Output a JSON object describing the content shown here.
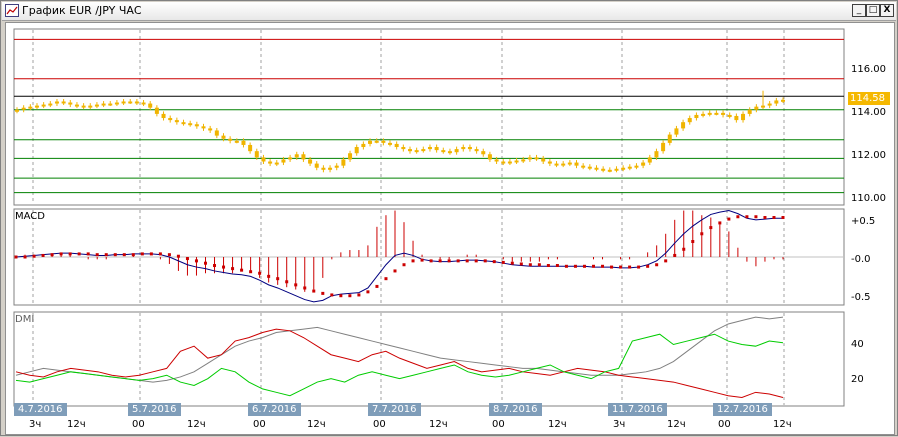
{
  "window": {
    "title": "График EUR /JPY  ЧАС",
    "buttons": [
      "_",
      "□",
      "X"
    ]
  },
  "price_panel": {
    "y_ticks": [
      "116.00",
      "114.00",
      "112.00",
      "110.00"
    ],
    "current_price": "114.58",
    "levels_red": [
      117.5,
      115.6
    ],
    "level_black": 114.75,
    "levels_green": [
      114.1,
      112.65,
      111.75,
      110.8,
      110.1
    ]
  },
  "macd_panel": {
    "label": "MACD",
    "y_ticks": [
      "+0.5",
      "-0.0",
      "-0.5"
    ]
  },
  "dmi_panel": {
    "label": "DMI",
    "y_ticks": [
      "40",
      "20"
    ]
  },
  "x_axis": {
    "dates": [
      "4.7.2016",
      "5.7.2016",
      "6.7.2016",
      "7.7.2016",
      "8.7.2016",
      "11.7.2016",
      "12.7.2016"
    ],
    "hours": [
      "3ч",
      "12ч",
      "00",
      "12ч",
      "00",
      "12ч",
      "00",
      "12ч",
      "00",
      "12ч",
      "3ч",
      "12ч",
      "00",
      "12ч"
    ]
  },
  "colors": {
    "candle": "#f0b400",
    "macd_line": "#000080",
    "signal": "#cc0000",
    "di_plus": "#00cc00",
    "di_minus": "#cc0000",
    "adx": "#808080",
    "date_tag": "#7f9db9"
  },
  "chart_data": [
    {
      "type": "candlestick",
      "title": "EUR/JPY",
      "ylim": [
        109.5,
        118
      ],
      "close": [
        114.1,
        114.2,
        114.25,
        114.3,
        114.35,
        114.4,
        114.5,
        114.45,
        114.35,
        114.3,
        114.25,
        114.3,
        114.35,
        114.4,
        114.4,
        114.45,
        114.5,
        114.5,
        114.45,
        114.4,
        114.2,
        113.9,
        113.7,
        113.6,
        113.5,
        113.45,
        113.4,
        113.3,
        113.2,
        113.1,
        112.85,
        112.7,
        112.6,
        112.6,
        112.4,
        112.1,
        111.8,
        111.6,
        111.5,
        111.55,
        111.7,
        111.8,
        111.95,
        111.7,
        111.5,
        111.3,
        111.2,
        111.3,
        111.4,
        111.7,
        112.0,
        112.3,
        112.45,
        112.6,
        112.6,
        112.5,
        112.45,
        112.3,
        112.2,
        112.1,
        112.15,
        112.2,
        112.3,
        112.15,
        112.1,
        112.05,
        112.2,
        112.3,
        112.2,
        112.1,
        111.95,
        111.7,
        111.6,
        111.55,
        111.6,
        111.65,
        111.7,
        111.8,
        111.75,
        111.6,
        111.5,
        111.45,
        111.5,
        111.55,
        111.4,
        111.35,
        111.3,
        111.25,
        111.2,
        111.2,
        111.25,
        111.3,
        111.35,
        111.4,
        111.55,
        111.8,
        112.1,
        112.5,
        112.9,
        113.2,
        113.5,
        113.7,
        113.85,
        113.9,
        113.95,
        113.95,
        113.85,
        113.8,
        113.6,
        113.9,
        114.1,
        114.25,
        114.3,
        114.4,
        114.55,
        114.58
      ]
    },
    {
      "type": "line",
      "title": "MACD",
      "ylim": [
        -0.62,
        0.62
      ],
      "series": [
        {
          "values": [
            0.0,
            0.01,
            0.02,
            0.03,
            0.04,
            0.05,
            0.05,
            0.04,
            0.03,
            0.02,
            0.02,
            0.03,
            0.03,
            0.04,
            0.04,
            0.04,
            0.03,
            0.0,
            -0.05,
            -0.1,
            -0.13,
            -0.15,
            -0.18,
            -0.2,
            -0.22,
            -0.23,
            -0.25,
            -0.3,
            -0.36,
            -0.4,
            -0.45,
            -0.5,
            -0.55,
            -0.58,
            -0.56,
            -0.5,
            -0.48,
            -0.47,
            -0.46,
            -0.4,
            -0.25,
            -0.1,
            0.02,
            0.05,
            0.02,
            -0.03,
            -0.05,
            -0.06,
            -0.06,
            -0.05,
            -0.04,
            -0.04,
            -0.05,
            -0.06,
            -0.08,
            -0.1,
            -0.11,
            -0.12,
            -0.12,
            -0.12,
            -0.12,
            -0.12,
            -0.12,
            -0.12,
            -0.13,
            -0.13,
            -0.13,
            -0.14,
            -0.14,
            -0.13,
            -0.1,
            -0.05,
            0.05,
            0.18,
            0.3,
            0.4,
            0.48,
            0.55,
            0.58,
            0.6,
            0.56,
            0.5,
            0.48,
            0.49,
            0.5,
            0.5
          ]
        },
        {
          "values": [
            0.0,
            0.0,
            0.01,
            0.02,
            0.03,
            0.04,
            0.04,
            0.04,
            0.04,
            0.03,
            0.03,
            0.03,
            0.03,
            0.03,
            0.04,
            0.04,
            0.04,
            0.03,
            0.01,
            -0.02,
            -0.05,
            -0.08,
            -0.11,
            -0.13,
            -0.15,
            -0.17,
            -0.19,
            -0.21,
            -0.25,
            -0.28,
            -0.32,
            -0.36,
            -0.4,
            -0.44,
            -0.47,
            -0.49,
            -0.5,
            -0.5,
            -0.49,
            -0.45,
            -0.38,
            -0.28,
            -0.18,
            -0.1,
            -0.05,
            -0.04,
            -0.05,
            -0.05,
            -0.05,
            -0.05,
            -0.05,
            -0.05,
            -0.05,
            -0.06,
            -0.07,
            -0.08,
            -0.09,
            -0.1,
            -0.1,
            -0.11,
            -0.11,
            -0.12,
            -0.12,
            -0.12,
            -0.12,
            -0.12,
            -0.13,
            -0.13,
            -0.13,
            -0.13,
            -0.12,
            -0.1,
            -0.05,
            0.02,
            0.1,
            0.2,
            0.3,
            0.38,
            0.44,
            0.49,
            0.52,
            0.52,
            0.52,
            0.51,
            0.51,
            0.51
          ]
        }
      ]
    },
    {
      "type": "line",
      "title": "DMI",
      "ylim": [
        0,
        55
      ],
      "series": [
        {
          "values": [
            18,
            20,
            22,
            21,
            20,
            19,
            18,
            17,
            16,
            15,
            14,
            15,
            17,
            20,
            25,
            30,
            35,
            38,
            40,
            43,
            44,
            45,
            46,
            44,
            42,
            40,
            38,
            36,
            34,
            32,
            30,
            28,
            27,
            26,
            25,
            24,
            23,
            22,
            22,
            21,
            20,
            19,
            18,
            18,
            18,
            19,
            20,
            22,
            26,
            32,
            38,
            44,
            48,
            50,
            52,
            51,
            52
          ]
        },
        {
          "values": [
            20,
            18,
            17,
            20,
            22,
            21,
            20,
            18,
            17,
            18,
            20,
            22,
            32,
            35,
            28,
            30,
            38,
            40,
            43,
            45,
            44,
            40,
            35,
            30,
            28,
            26,
            30,
            32,
            28,
            25,
            22,
            24,
            26,
            22,
            20,
            21,
            22,
            20,
            19,
            18,
            20,
            22,
            21,
            20,
            18,
            17,
            16,
            15,
            14,
            12,
            10,
            8,
            6,
            5,
            8,
            7,
            5
          ]
        },
        {
          "values": [
            15,
            14,
            16,
            18,
            20,
            19,
            18,
            17,
            16,
            15,
            16,
            18,
            14,
            12,
            16,
            22,
            20,
            14,
            10,
            8,
            6,
            10,
            14,
            16,
            14,
            18,
            20,
            18,
            16,
            18,
            20,
            22,
            24,
            20,
            18,
            17,
            18,
            20,
            22,
            24,
            20,
            18,
            16,
            20,
            22,
            38,
            40,
            42,
            36,
            38,
            40,
            42,
            38,
            36,
            35,
            38,
            37
          ]
        }
      ]
    }
  ]
}
